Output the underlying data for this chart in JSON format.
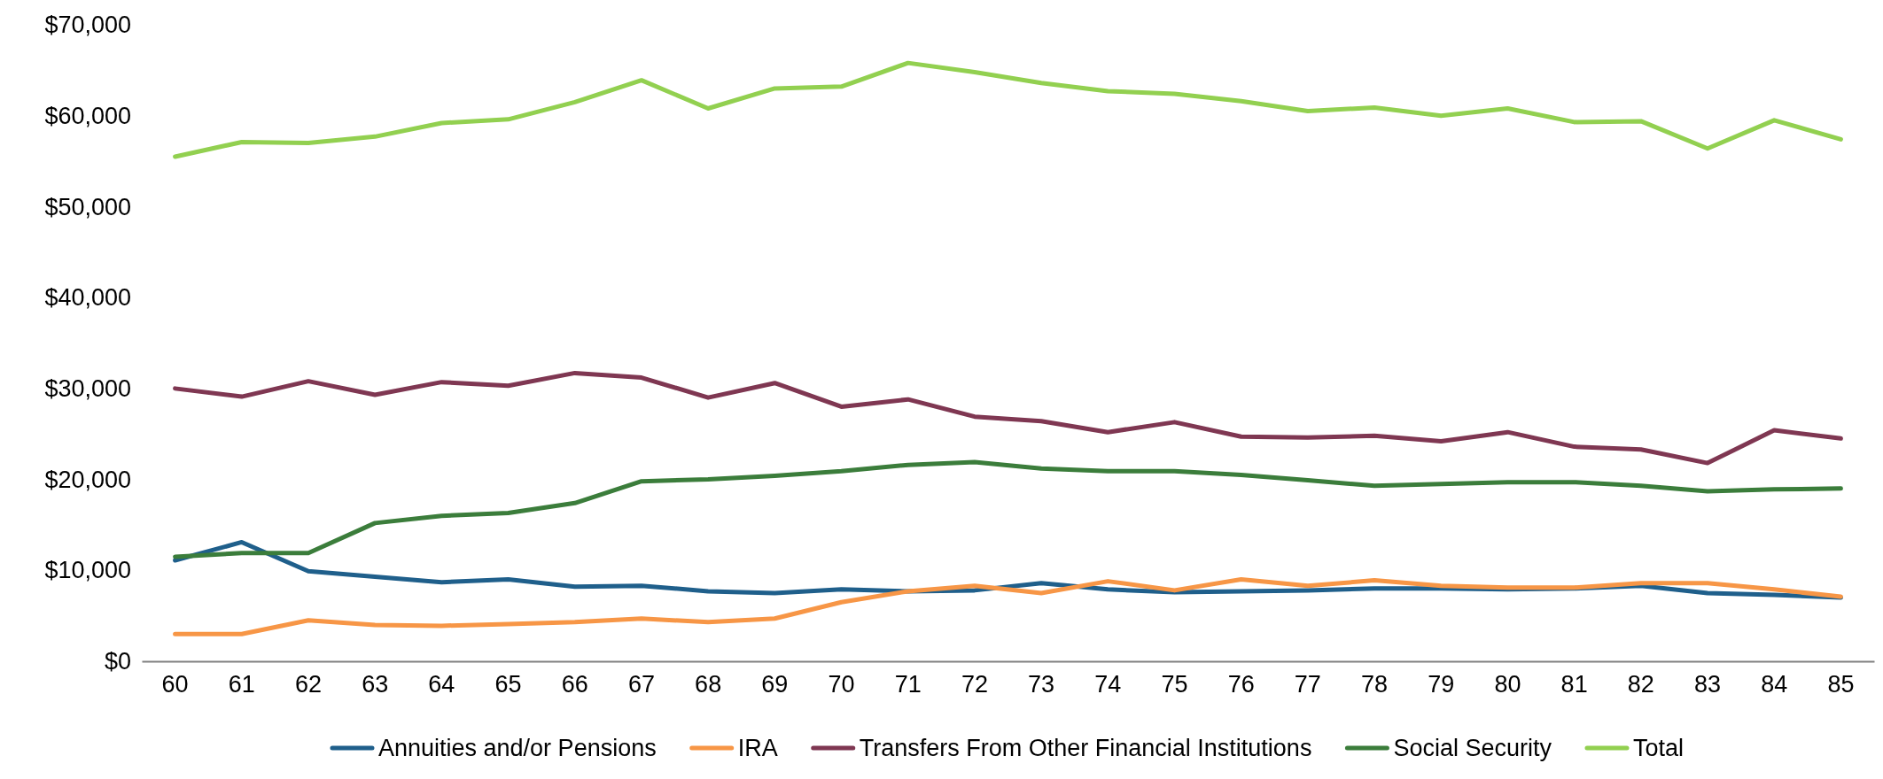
{
  "chart_data": {
    "type": "line",
    "categories": [
      "60",
      "61",
      "62",
      "63",
      "64",
      "65",
      "66",
      "67",
      "68",
      "69",
      "70",
      "71",
      "72",
      "73",
      "74",
      "75",
      "76",
      "77",
      "78",
      "79",
      "80",
      "81",
      "82",
      "83",
      "84",
      "85"
    ],
    "ylim": [
      0,
      70000
    ],
    "yticks": [
      {
        "value": 0,
        "label": "$0"
      },
      {
        "value": 10000,
        "label": "$10,000"
      },
      {
        "value": 20000,
        "label": "$20,000"
      },
      {
        "value": 30000,
        "label": "$30,000"
      },
      {
        "value": 40000,
        "label": "$40,000"
      },
      {
        "value": 50000,
        "label": "$50,000"
      },
      {
        "value": 60000,
        "label": "$60,000"
      },
      {
        "value": 70000,
        "label": "$70,000"
      }
    ],
    "grid": false,
    "legend": "bottom",
    "marker": "none",
    "line_style": "solid",
    "series": [
      {
        "name": "Annuities and/or Pensions",
        "color": "#1f5f8b",
        "values": [
          11100,
          13100,
          9900,
          9300,
          8700,
          9000,
          8200,
          8300,
          7700,
          7500,
          7900,
          7700,
          7800,
          8600,
          7900,
          7600,
          7700,
          7800,
          8000,
          8000,
          7900,
          8000,
          8300,
          7500,
          7300,
          7000
        ]
      },
      {
        "name": "IRA",
        "color": "#f79646",
        "values": [
          3000,
          3000,
          4500,
          4000,
          3900,
          4100,
          4300,
          4700,
          4300,
          4700,
          6500,
          7700,
          8300,
          7500,
          8800,
          7800,
          9000,
          8300,
          8900,
          8300,
          8100,
          8100,
          8600,
          8600,
          7900,
          7100
        ]
      },
      {
        "name": "Transfers From Other Financial Institutions",
        "color": "#7f3752",
        "values": [
          30000,
          29100,
          30800,
          29300,
          30700,
          30300,
          31700,
          31200,
          29000,
          30600,
          28000,
          28800,
          26900,
          26400,
          25200,
          26300,
          24700,
          24600,
          24800,
          24200,
          25200,
          23600,
          23300,
          21800,
          25400,
          24500
        ]
      },
      {
        "name": "Social Security",
        "color": "#3b7d3b",
        "values": [
          11500,
          11900,
          11900,
          15200,
          16000,
          16300,
          17400,
          19800,
          20000,
          20400,
          20900,
          21600,
          21900,
          21200,
          20900,
          20900,
          20500,
          19900,
          19300,
          19500,
          19700,
          19700,
          19300,
          18700,
          18900,
          19000
        ]
      },
      {
        "name": "Total",
        "color": "#92d050",
        "values": [
          55500,
          57100,
          57000,
          57700,
          59200,
          59600,
          61500,
          63900,
          60800,
          63000,
          63200,
          65800,
          64800,
          63600,
          62700,
          62400,
          61600,
          60500,
          60900,
          60000,
          60800,
          59300,
          59400,
          56400,
          59500,
          57400
        ]
      }
    ]
  }
}
